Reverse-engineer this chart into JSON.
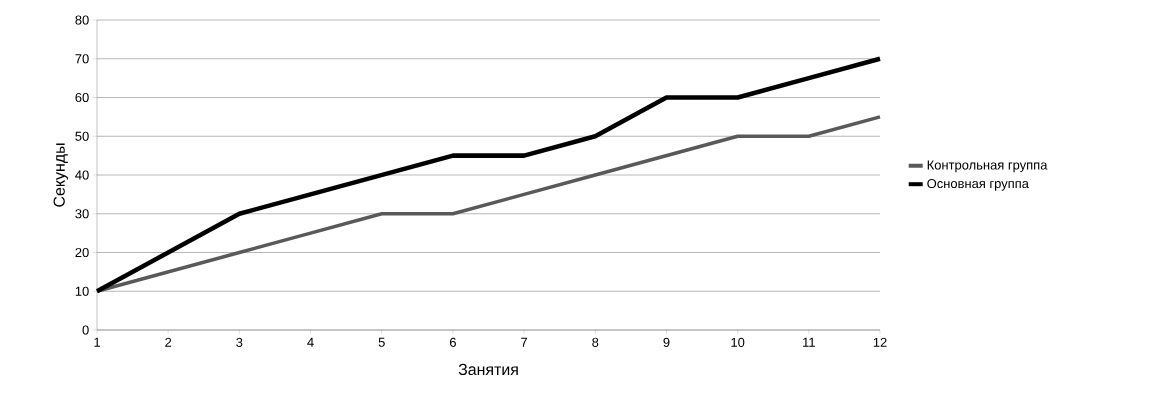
{
  "chart_data": {
    "type": "line",
    "xlabel": "Занятия",
    "ylabel": "Секунды",
    "categories": [
      "1",
      "2",
      "3",
      "4",
      "5",
      "6",
      "7",
      "8",
      "9",
      "10",
      "11",
      "12"
    ],
    "series": [
      {
        "name": "Контрольная группа",
        "color": "#595959",
        "values": [
          10,
          15,
          20,
          25,
          30,
          30,
          35,
          40,
          45,
          50,
          50,
          55
        ]
      },
      {
        "name": "Основная группа",
        "color": "#000000",
        "values": [
          10,
          20,
          30,
          35,
          40,
          45,
          45,
          50,
          60,
          60,
          65,
          70
        ]
      }
    ],
    "ylim": [
      0,
      80
    ],
    "yticks": [
      0,
      10,
      20,
      30,
      40,
      50,
      60,
      70,
      80
    ],
    "grid": "y",
    "legend": "right"
  }
}
